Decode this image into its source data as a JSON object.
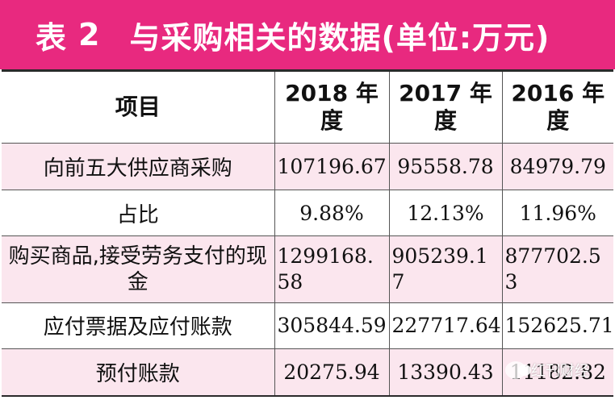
{
  "title": {
    "label": "表",
    "number": "2",
    "text": "与采购相关的数据(单位:万元)"
  },
  "table": {
    "headers": [
      "项目",
      "2018 年度",
      "2017 年度",
      "2016 年度"
    ],
    "rows": [
      {
        "label": "向前五大供应商采购",
        "values": [
          "107196.67",
          "95558.78",
          "84979.79"
        ]
      },
      {
        "label": "占比",
        "values": [
          "9.88%",
          "12.13%",
          "11.96%"
        ]
      },
      {
        "label": "购买商品,接受劳务支付的现金",
        "values": [
          "1299168.58",
          "905239.17",
          "877702.53"
        ]
      },
      {
        "label": "应付票据及应付账款",
        "values": [
          "305844.59",
          "227717.64",
          "152625.71"
        ]
      },
      {
        "label": "预付账款",
        "values": [
          "20275.94",
          "13390.43",
          "11182.82"
        ]
      }
    ]
  },
  "watermark": {
    "icon": "wechat-icon",
    "text": "红刊财经"
  }
}
